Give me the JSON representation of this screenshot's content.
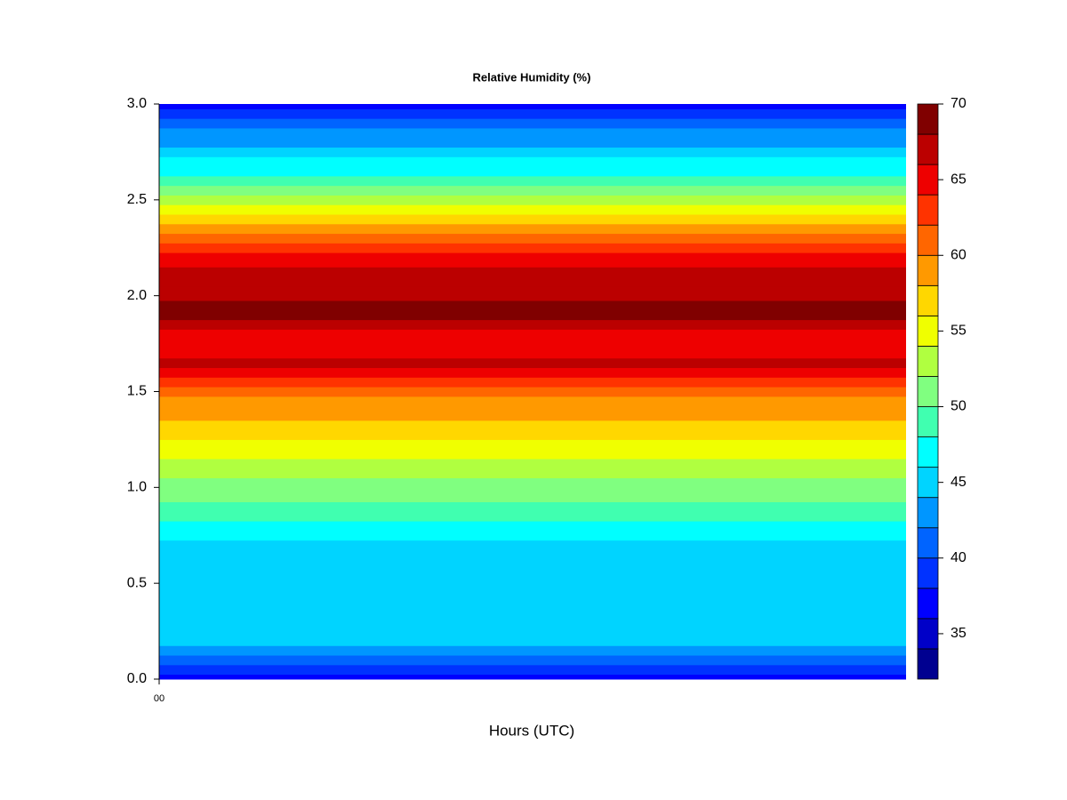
{
  "chart_data": {
    "type": "contour",
    "title": "Relative Humidity (%)",
    "x_label": "Hours (UTC)",
    "xticks": [
      {
        "value": 0,
        "label": "00"
      }
    ],
    "ylim": [
      0,
      3
    ],
    "yticks": [
      {
        "value": 0,
        "label": "0.0"
      },
      0.5,
      {
        "value": 1,
        "label": "1.0"
      },
      1.5,
      {
        "value": 2,
        "label": "2.0"
      },
      2.5,
      {
        "value": 3,
        "label": "3.0"
      }
    ],
    "y": [
      0,
      0.05,
      0.1,
      0.15,
      0.2,
      0.3,
      0.4,
      0.5,
      0.6,
      0.7,
      0.75,
      0.8,
      0.85,
      0.9,
      0.95,
      1.0,
      1.1,
      1.2,
      1.3,
      1.4,
      1.45,
      1.5,
      1.55,
      1.6,
      1.65,
      1.7,
      1.75,
      1.8,
      1.85,
      1.9,
      1.95,
      2.0,
      2.1,
      2.2,
      2.25,
      2.3,
      2.35,
      2.4,
      2.45,
      2.5,
      2.55,
      2.6,
      2.65,
      2.7,
      2.75,
      2.8,
      2.85,
      2.9,
      2.95,
      3.0
    ],
    "values": [
      36.5,
      38.5,
      41,
      43,
      44.5,
      45,
      45,
      45,
      45,
      45,
      46.5,
      47.5,
      48.5,
      49.5,
      50.5,
      51.5,
      52.5,
      54.5,
      56.5,
      58.5,
      59.5,
      61,
      63,
      65,
      67,
      65,
      65,
      65,
      67,
      69,
      69,
      67,
      67,
      65,
      63,
      61,
      59,
      56.5,
      54.5,
      52.5,
      51,
      49,
      47,
      46.5,
      45,
      43,
      42,
      40.5,
      38.5,
      37
    ],
    "levels": [
      32,
      34,
      36,
      38,
      40,
      42,
      44,
      46,
      48,
      50,
      52,
      54,
      56,
      58,
      60,
      62,
      64,
      66,
      68,
      70
    ],
    "colors": [
      "#000090",
      "#0000c8",
      "#0000ff",
      "#0032ff",
      "#0064ff",
      "#0096ff",
      "#00d4ff",
      "#00ffff",
      "#40ffb0",
      "#80ff80",
      "#b0ff40",
      "#f0ff00",
      "#ffd700",
      "#ff9900",
      "#ff6600",
      "#ff3300",
      "#ee0000",
      "#bb0000",
      "#800000"
    ],
    "colorbar_ticks": [
      35,
      40,
      45,
      50,
      55,
      60,
      65,
      70
    ]
  }
}
